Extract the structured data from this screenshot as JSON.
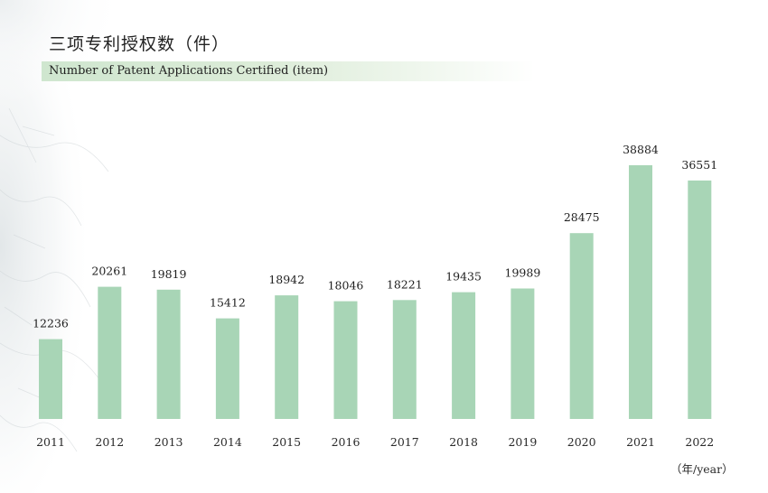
{
  "title_cn": "三项专利授权数（件）",
  "title_en": "Number of Patent Applications Certified (item)",
  "unit_label": "（年/year）",
  "colors": {
    "bar": "#a8d5b6",
    "band": "#d6ead4"
  },
  "chart_data": {
    "type": "bar",
    "categories": [
      "2011",
      "2012",
      "2013",
      "2014",
      "2015",
      "2016",
      "2017",
      "2018",
      "2019",
      "2020",
      "2021",
      "2022"
    ],
    "values": [
      12236,
      20261,
      19819,
      15412,
      18942,
      18046,
      18221,
      19435,
      19989,
      28475,
      38884,
      36551
    ],
    "ylim": [
      0,
      40000
    ],
    "grid": false,
    "legend": "none"
  }
}
